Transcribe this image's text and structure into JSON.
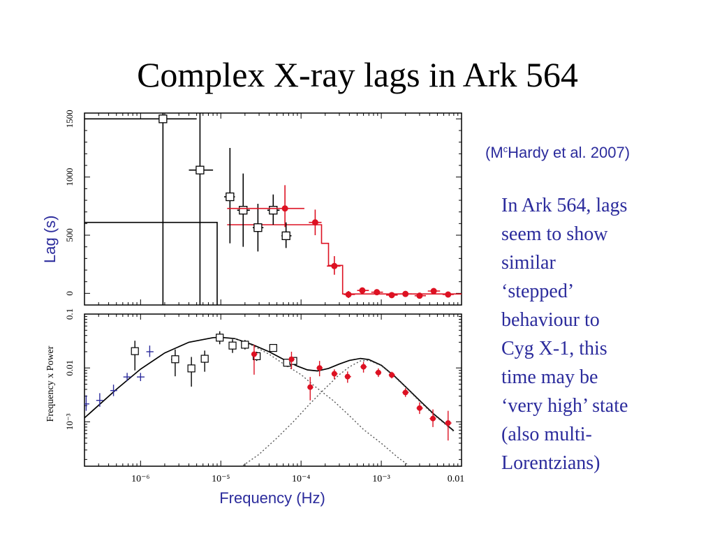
{
  "slide": {
    "title": "Complex X-ray lags in Ark 564",
    "citation_prefix": "(M",
    "citation_sup": "c",
    "citation_rest": "Hardy et al. 2007)",
    "body_lines": [
      "In Ark 564, lags",
      "seem to show",
      "similar",
      "‘stepped’",
      "behaviour to",
      "Cyg X-1, this",
      "time may be",
      "‘very high’ state",
      "(also multi-",
      "Lorentzians)"
    ],
    "text_color": "#2b2b9c"
  },
  "chart_data": [
    {
      "type": "scatter",
      "panel": "lag",
      "ylabel": "Lag (s)",
      "xscale": "log",
      "xlim": [
        2e-07,
        0.01
      ],
      "ylim": [
        -100,
        1550
      ],
      "yticks": [
        0,
        500,
        1000,
        1500
      ],
      "yticklabels": [
        "0",
        "500",
        "1000",
        "1500"
      ],
      "series": [
        {
          "marker": "open-square",
          "color": "#000000",
          "points": [
            {
              "x": 1.9e-06,
              "y": 1500,
              "xlo": 2e-07,
              "xhi": 5e-06,
              "ylo": -100,
              "yhi": 1550
            },
            {
              "x": 5.5e-06,
              "y": 1060,
              "xlo": 4e-06,
              "xhi": 8e-06,
              "ylo": -100,
              "yhi": 1550
            },
            {
              "x": 1.3e-05,
              "y": 830,
              "xlo": 1.1e-05,
              "xhi": 1.5e-05,
              "ylo": 430,
              "yhi": 1250
            },
            {
              "x": 1.9e-05,
              "y": 715,
              "xlo": 1.6e-05,
              "xhi": 2.3e-05,
              "ylo": 400,
              "yhi": 1030
            },
            {
              "x": 2.9e-05,
              "y": 565,
              "xlo": 2.5e-05,
              "xhi": 3.4e-05,
              "ylo": 360,
              "yhi": 770
            },
            {
              "x": 4.5e-05,
              "y": 715,
              "xlo": 3.8e-05,
              "xhi": 5.4e-05,
              "ylo": 590,
              "yhi": 850
            },
            {
              "x": 6.5e-05,
              "y": 495,
              "xlo": 5.7e-05,
              "xhi": 7.6e-05,
              "ylo": 390,
              "yhi": 610
            }
          ]
        },
        {
          "marker": "filled-circle",
          "color": "#dd1122",
          "points": [
            {
              "x": 6.3e-05,
              "y": 730,
              "xlo": 1.2e-05,
              "xhi": 0.00011,
              "ylo": 570,
              "yhi": 930
            },
            {
              "x": 0.00015,
              "y": 610,
              "xlo": 0.000125,
              "xhi": 0.00018,
              "ylo": 500,
              "yhi": 720
            },
            {
              "x": 0.00026,
              "y": 235,
              "xlo": 0.00021,
              "xhi": 0.00031,
              "ylo": 160,
              "yhi": 320
            },
            {
              "x": 0.00039,
              "y": -10,
              "xlo": 0.00034,
              "xhi": 0.00047,
              "ylo": -40,
              "yhi": 20
            },
            {
              "x": 0.00058,
              "y": 25,
              "xlo": 0.0005,
              "xhi": 0.0007,
              "ylo": 0,
              "yhi": 50
            },
            {
              "x": 0.00088,
              "y": 10,
              "xlo": 0.00075,
              "xhi": 0.00105,
              "ylo": -15,
              "yhi": 35
            },
            {
              "x": 0.00135,
              "y": -15,
              "xlo": 0.00115,
              "xhi": 0.0016,
              "ylo": -35,
              "yhi": 5
            },
            {
              "x": 0.002,
              "y": -5,
              "xlo": 0.0017,
              "xhi": 0.0024,
              "ylo": -25,
              "yhi": 15
            },
            {
              "x": 0.003,
              "y": -20,
              "xlo": 0.0026,
              "xhi": 0.0036,
              "ylo": -40,
              "yhi": 0
            },
            {
              "x": 0.0045,
              "y": 20,
              "xlo": 0.0038,
              "xhi": 0.0054,
              "ylo": 0,
              "yhi": 40
            },
            {
              "x": 0.0068,
              "y": -10,
              "xlo": 0.0058,
              "xhi": 0.008,
              "ylo": -30,
              "yhi": 10
            }
          ]
        }
      ],
      "lines": [
        {
          "name": "",
          "style": "step",
          "color": "#000000",
          "points": [
            [
              2e-07,
              610
            ],
            [
              9e-06,
              610
            ],
            [
              9e-06,
              -100
            ]
          ]
        },
        {
          "name": "",
          "style": "step",
          "color": "#dd1122",
          "points": [
            [
              1.2e-05,
              590
            ],
            [
              0.00018,
              590
            ],
            [
              0.00018,
              430
            ],
            [
              0.00022,
              430
            ],
            [
              0.00022,
              240
            ],
            [
              0.00033,
              240
            ],
            [
              0.00033,
              -5
            ],
            [
              0.01,
              -5
            ]
          ]
        }
      ]
    },
    {
      "type": "scatter",
      "panel": "psd",
      "ylabel": "Frequency x Power",
      "xlabel": "Frequency (Hz)",
      "xscale": "log",
      "yscale": "log",
      "xlim": [
        2e-07,
        0.01
      ],
      "ylim": [
        0.00015,
        0.1
      ],
      "xticklabels": [
        "10⁻⁶",
        "10⁻⁵",
        "10⁻⁴",
        "10⁻³",
        "0.01"
      ],
      "xticks": [
        1e-06,
        1e-05,
        0.0001,
        0.001,
        0.01
      ],
      "yticks": [
        0.001,
        0.01,
        0.1
      ],
      "yticklabels": [
        "10⁻³",
        "0.01",
        "0.1"
      ],
      "series": [
        {
          "marker": "plus",
          "color": "#2b2b9c",
          "points": [
            {
              "x": 2.1e-07,
              "y": 0.00215,
              "xlo": 1.9e-07,
              "xhi": 2.3e-07,
              "ylo": 0.0016,
              "yhi": 0.0031
            },
            {
              "x": 3.1e-07,
              "y": 0.0025,
              "xlo": 2.8e-07,
              "xhi": 3.4e-07,
              "ylo": 0.0019,
              "yhi": 0.0034
            },
            {
              "x": 4.6e-07,
              "y": 0.0038,
              "xlo": 4.2e-07,
              "xhi": 5.1e-07,
              "ylo": 0.003,
              "yhi": 0.0049
            },
            {
              "x": 6.8e-07,
              "y": 0.0068,
              "xlo": 6.1e-07,
              "xhi": 7.6e-07,
              "ylo": 0.0057,
              "yhi": 0.0081
            },
            {
              "x": 1e-06,
              "y": 0.0068,
              "xlo": 9e-07,
              "xhi": 1.12e-06,
              "ylo": 0.0057,
              "yhi": 0.0081
            },
            {
              "x": 1.3e-06,
              "y": 0.02,
              "xlo": 1.18e-06,
              "xhi": 1.45e-06,
              "ylo": 0.016,
              "yhi": 0.026
            }
          ]
        },
        {
          "marker": "open-square",
          "color": "#000000",
          "points": [
            {
              "x": 8.5e-07,
              "y": 0.0205,
              "xlo": 7.8e-07,
              "xhi": 9.3e-07,
              "ylo": 0.009,
              "yhi": 0.032
            },
            {
              "x": 2.7e-06,
              "y": 0.0145,
              "xlo": 2.4e-06,
              "xhi": 3e-06,
              "ylo": 0.007,
              "yhi": 0.022
            },
            {
              "x": 4.3e-06,
              "y": 0.0098,
              "xlo": 3.9e-06,
              "xhi": 4.8e-06,
              "ylo": 0.0045,
              "yhi": 0.016
            },
            {
              "x": 6.3e-06,
              "y": 0.0148,
              "xlo": 5.7e-06,
              "xhi": 7e-06,
              "ylo": 0.0085,
              "yhi": 0.021
            },
            {
              "x": 9.7e-06,
              "y": 0.0365,
              "xlo": 8.8e-06,
              "xhi": 1.07e-05,
              "ylo": 0.0275,
              "yhi": 0.048
            },
            {
              "x": 1.4e-05,
              "y": 0.026,
              "xlo": 1.27e-05,
              "xhi": 1.55e-05,
              "ylo": 0.019,
              "yhi": 0.034
            },
            {
              "x": 2e-05,
              "y": 0.027,
              "xlo": 1.8e-05,
              "xhi": 2.2e-05,
              "ylo": 0.022,
              "yhi": 0.033
            },
            {
              "x": 2.8e-05,
              "y": 0.0165,
              "xlo": 2.5e-05,
              "xhi": 3.1e-05,
              "ylo": 0.0135,
              "yhi": 0.02
            },
            {
              "x": 4.5e-05,
              "y": 0.0235,
              "xlo": 4.1e-05,
              "xhi": 5e-05,
              "ylo": 0.021,
              "yhi": 0.026
            },
            {
              "x": 6.7e-05,
              "y": 0.0125,
              "xlo": 6.1e-05,
              "xhi": 7.4e-05,
              "ylo": 0.0105,
              "yhi": 0.0148
            },
            {
              "x": 8e-05,
              "y": 0.0135,
              "xlo": 7.3e-05,
              "xhi": 8.8e-05,
              "ylo": 0.0115,
              "yhi": 0.0158
            }
          ]
        },
        {
          "marker": "filled-circle",
          "color": "#dd1122",
          "points": [
            {
              "x": 2.6e-05,
              "y": 0.018,
              "xlo": 2.4e-05,
              "xhi": 2.85e-05,
              "ylo": 0.0075,
              "yhi": 0.027
            },
            {
              "x": 7.6e-05,
              "y": 0.0145,
              "xlo": 7e-05,
              "xhi": 8.3e-05,
              "ylo": 0.0095,
              "yhi": 0.02
            },
            {
              "x": 0.00013,
              "y": 0.0044,
              "xlo": 0.00012,
              "xhi": 0.000142,
              "ylo": 0.0025,
              "yhi": 0.0068
            },
            {
              "x": 0.00017,
              "y": 0.01,
              "xlo": 0.000156,
              "xhi": 0.000186,
              "ylo": 0.007,
              "yhi": 0.0135
            },
            {
              "x": 0.00026,
              "y": 0.0078,
              "xlo": 0.00024,
              "xhi": 0.000285,
              "ylo": 0.0062,
              "yhi": 0.0094
            },
            {
              "x": 0.00038,
              "y": 0.0069,
              "xlo": 0.00035,
              "xhi": 0.00042,
              "ylo": 0.0053,
              "yhi": 0.0086
            },
            {
              "x": 0.0006,
              "y": 0.0105,
              "xlo": 0.00055,
              "xhi": 0.00066,
              "ylo": 0.0082,
              "yhi": 0.013
            },
            {
              "x": 0.00092,
              "y": 0.0082,
              "xlo": 0.00084,
              "xhi": 0.001,
              "ylo": 0.0068,
              "yhi": 0.0098
            },
            {
              "x": 0.00135,
              "y": 0.0074,
              "xlo": 0.00124,
              "xhi": 0.00148,
              "ylo": 0.0064,
              "yhi": 0.0085
            },
            {
              "x": 0.002,
              "y": 0.0035,
              "xlo": 0.00183,
              "xhi": 0.0022,
              "ylo": 0.0029,
              "yhi": 0.0042
            },
            {
              "x": 0.003,
              "y": 0.0018,
              "xlo": 0.00275,
              "xhi": 0.0033,
              "ylo": 0.0014,
              "yhi": 0.0023
            },
            {
              "x": 0.0044,
              "y": 0.00115,
              "xlo": 0.004,
              "xhi": 0.0048,
              "ylo": 0.0008,
              "yhi": 0.0017
            },
            {
              "x": 0.0068,
              "y": 0.00095,
              "xlo": 0.0062,
              "xhi": 0.0075,
              "ylo": 0.00045,
              "yhi": 0.0016
            }
          ]
        }
      ],
      "lines": [
        {
          "name": "",
          "style": "solid",
          "color": "#000000",
          "points": [
            [
              2e-07,
              0.00118
            ],
            [
              5e-07,
              0.004
            ],
            [
              1e-06,
              0.0095
            ],
            [
              2e-06,
              0.019
            ],
            [
              4e-06,
              0.03
            ],
            [
              8e-06,
              0.0365
            ],
            [
              1e-05,
              0.037
            ],
            [
              1.5e-05,
              0.035
            ],
            [
              2.5e-05,
              0.027
            ],
            [
              4e-05,
              0.02
            ],
            [
              6e-05,
              0.0145
            ],
            [
              9e-05,
              0.0108
            ],
            [
              0.00012,
              0.0092
            ],
            [
              0.00016,
              0.0088
            ],
            [
              0.00022,
              0.0098
            ],
            [
              0.0003,
              0.0118
            ],
            [
              0.0004,
              0.0138
            ],
            [
              0.00055,
              0.015
            ],
            [
              0.0007,
              0.0143
            ],
            [
              0.001,
              0.0112
            ],
            [
              0.0015,
              0.0068
            ],
            [
              0.002,
              0.0045
            ],
            [
              0.003,
              0.0025
            ],
            [
              0.0045,
              0.0014
            ],
            [
              0.006,
              0.00098
            ],
            [
              0.008,
              0.00068
            ]
          ]
        },
        {
          "name": "",
          "style": "dotted",
          "color": "#555555",
          "points": [
            [
              1.5e-05,
              0.035
            ],
            [
              2.5e-05,
              0.026
            ],
            [
              4e-05,
              0.018
            ],
            [
              6e-05,
              0.012
            ],
            [
              0.0001,
              0.0075
            ],
            [
              0.00015,
              0.0045
            ],
            [
              0.00025,
              0.0025
            ],
            [
              0.0004,
              0.0013
            ],
            [
              0.0006,
              0.00072
            ],
            [
              0.001,
              0.0004
            ],
            [
              0.0016,
              0.00022
            ],
            [
              0.0022,
              0.000155
            ]
          ]
        },
        {
          "name": "",
          "style": "dotted",
          "color": "#555555",
          "points": [
            [
              1.9e-05,
              0.000155
            ],
            [
              3e-05,
              0.00025
            ],
            [
              5e-05,
              0.0005
            ],
            [
              8e-05,
              0.001
            ],
            [
              0.00013,
              0.0022
            ],
            [
              0.0002,
              0.0042
            ],
            [
              0.0003,
              0.0075
            ],
            [
              0.0004,
              0.0105
            ],
            [
              0.00055,
              0.0135
            ],
            [
              0.0007,
              0.0138
            ],
            [
              0.001,
              0.011
            ],
            [
              0.0015,
              0.0066
            ],
            [
              0.002,
              0.0044
            ],
            [
              0.003,
              0.0024
            ],
            [
              0.0045,
              0.00135
            ],
            [
              0.006,
              0.00095
            ],
            [
              0.008,
              0.00066
            ]
          ]
        }
      ]
    }
  ]
}
